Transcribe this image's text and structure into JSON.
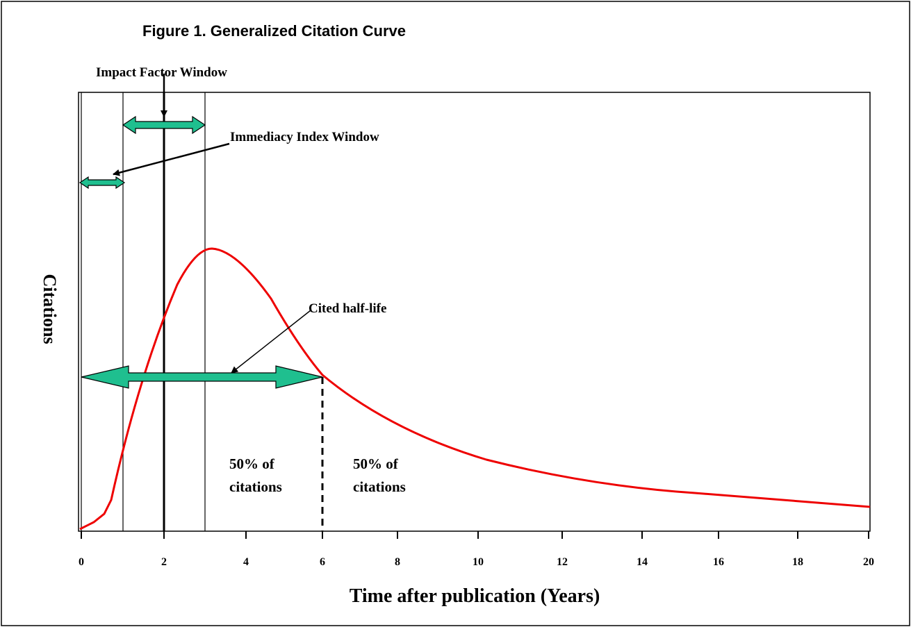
{
  "title": "Figure 1. Generalized Citation Curve",
  "annotations": {
    "impact_factor": "Impact Factor Window",
    "immediacy": "Immediacy Index Window",
    "half_life": "Cited half-life",
    "left_share": [
      "50% of",
      "citations"
    ],
    "right_share": [
      "50% of",
      "citations"
    ]
  },
  "axes": {
    "y_label": "Citations",
    "x_label": "Time after publication (Years)",
    "x_ticks": [
      "0",
      "2",
      "4",
      "6",
      "8",
      "10",
      "12",
      "14",
      "16",
      "18",
      "20"
    ]
  }
}
